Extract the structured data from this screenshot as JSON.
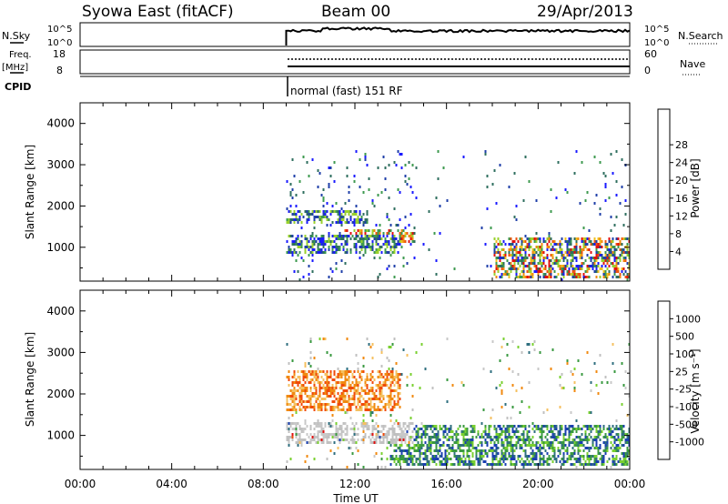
{
  "header": {
    "title": "Syowa East (fitACF)",
    "beam": "Beam 00",
    "date": "29/Apr/2013"
  },
  "param_panels": {
    "nsky_label": "N.Sky",
    "nsky_ticks": [
      "10^5",
      "10^0"
    ],
    "nsearch_label": "N.Search",
    "nsearch_ticks": [
      "10^5",
      "10^0"
    ],
    "freq_label_line1": "Freq.",
    "freq_label_line2": "[MHz]",
    "freq_ticks": [
      "18",
      "8"
    ],
    "nave_label": "Nave",
    "nave_ticks": [
      "60",
      "0"
    ],
    "cpid_label": "CPID",
    "cpid_value": "normal (fast) 151 RF"
  },
  "colors": {
    "power_scale": [
      "#1a1aff",
      "#1f3fa8",
      "#2f6f5f",
      "#3e9a4f",
      "#9ad12e",
      "#f0c020",
      "#f08a10",
      "#ee5510",
      "#e01010"
    ],
    "velocity_scale": [
      "#e01010",
      "#f04a0a",
      "#f08a10",
      "#f5c060",
      "#c0c0c0",
      "#c8c8c8",
      "#7ad030",
      "#3a9a40",
      "#2f6f7f",
      "#1a3fb0"
    ]
  },
  "chart_data": [
    {
      "type": "heatmap",
      "title": "",
      "xlabel": "",
      "ylabel": "Slant Range [km]",
      "xlim": [
        "00:00",
        "00:00"
      ],
      "ylim": [
        180,
        4500
      ],
      "y_ticks": [
        1000,
        2000,
        3000,
        4000
      ],
      "x_ticks": [
        "00:00",
        "04:00",
        "08:00",
        "12:00",
        "16:00",
        "20:00",
        "00:00"
      ],
      "colorbar_label": "Power [dB]",
      "colorbar_ticks": [
        "4",
        "8",
        "12",
        "16",
        "20",
        "24",
        "28"
      ],
      "data_start": "09:00",
      "data_end": "24:00",
      "bands": [
        {
          "start": "09:00",
          "end": "14:00",
          "range_km": [
            900,
            1350
          ],
          "level": "low-mid"
        },
        {
          "start": "09:00",
          "end": "12:30",
          "range_km": [
            1600,
            1900
          ],
          "level": "low-mid"
        },
        {
          "start": "11:30",
          "end": "14:30",
          "range_km": [
            1150,
            1450
          ],
          "level": "high"
        },
        {
          "start": "18:00",
          "end": "24:00",
          "range_km": [
            250,
            1300
          ],
          "level": "mixed"
        }
      ]
    },
    {
      "type": "heatmap",
      "title": "",
      "xlabel": "Time UT",
      "ylabel": "Slant Range [km]",
      "xlim": [
        "00:00",
        "00:00"
      ],
      "ylim": [
        180,
        4500
      ],
      "y_ticks": [
        1000,
        2000,
        3000,
        4000
      ],
      "x_ticks": [
        "00:00",
        "04:00",
        "08:00",
        "12:00",
        "16:00",
        "20:00",
        "00:00"
      ],
      "colorbar_label": "Velocity [m s⁻¹]",
      "colorbar_ticks": [
        "1000",
        "500",
        "100",
        "25",
        "-25",
        "-100",
        "-500",
        "-1000"
      ],
      "data_start": "09:00",
      "data_end": "24:00",
      "bands": [
        {
          "start": "09:00",
          "end": "14:30",
          "range_km": [
            800,
            1350
          ],
          "level": "near-zero"
        },
        {
          "start": "09:00",
          "end": "14:00",
          "range_km": [
            1600,
            2600
          ],
          "level": "negative"
        },
        {
          "start": "13:30",
          "end": "24:00",
          "range_km": [
            300,
            1300
          ],
          "level": "positive"
        }
      ]
    }
  ]
}
